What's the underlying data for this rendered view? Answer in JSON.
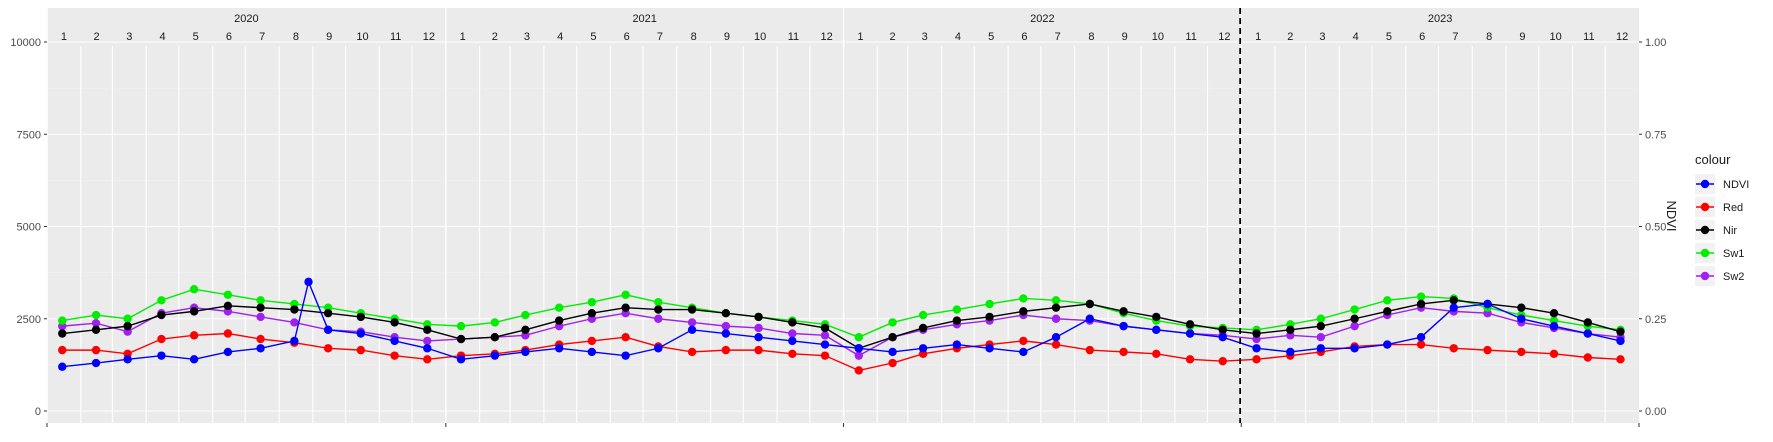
{
  "chart_data": {
    "type": "line",
    "x_axis": {
      "years": [
        "2020",
        "2021",
        "2022",
        "2023"
      ],
      "months": [
        "1",
        "2",
        "3",
        "4",
        "5",
        "6",
        "7",
        "8",
        "9",
        "10",
        "11",
        "12"
      ],
      "start": "2020-01-01",
      "end": "2024-01-01"
    },
    "y_left": {
      "range": [
        0,
        10000
      ],
      "ticks": [
        0,
        2500,
        5000,
        7500,
        10000
      ],
      "tick_labels": [
        "0",
        "2500",
        "5000",
        "7500",
        "10000"
      ]
    },
    "y_right": {
      "label": "NDVI",
      "range": [
        0.0,
        1.0
      ],
      "ticks": [
        0.0,
        0.25,
        0.5,
        0.75,
        1.0
      ],
      "tick_labels": [
        "0.00",
        "0.25",
        "0.50",
        "0.75",
        "1.00"
      ]
    },
    "vline_date": "2022-12-31",
    "grid": true,
    "legend": {
      "title": "colour",
      "position": "right"
    },
    "series": [
      {
        "name": "Sw2",
        "color": "#a020f0",
        "axis": "left",
        "points": [
          [
            "2020-01-15",
            2300
          ],
          [
            "2020-02-15",
            2380
          ],
          [
            "2020-03-15",
            2150
          ],
          [
            "2020-04-15",
            2650
          ],
          [
            "2020-05-15",
            2800
          ],
          [
            "2020-06-15",
            2700
          ],
          [
            "2020-07-15",
            2550
          ],
          [
            "2020-08-15",
            2400
          ],
          [
            "2020-09-15",
            2200
          ],
          [
            "2020-10-15",
            2150
          ],
          [
            "2020-11-15",
            2000
          ],
          [
            "2020-12-15",
            1900
          ],
          [
            "2021-01-15",
            1950
          ],
          [
            "2021-02-15",
            2000
          ],
          [
            "2021-03-15",
            2050
          ],
          [
            "2021-04-15",
            2300
          ],
          [
            "2021-05-15",
            2500
          ],
          [
            "2021-06-15",
            2650
          ],
          [
            "2021-07-15",
            2500
          ],
          [
            "2021-08-15",
            2400
          ],
          [
            "2021-09-15",
            2300
          ],
          [
            "2021-10-15",
            2250
          ],
          [
            "2021-11-15",
            2100
          ],
          [
            "2021-12-15",
            2050
          ],
          [
            "2022-01-15",
            1500
          ],
          [
            "2022-02-15",
            2000
          ],
          [
            "2022-03-15",
            2200
          ],
          [
            "2022-04-15",
            2350
          ],
          [
            "2022-05-15",
            2450
          ],
          [
            "2022-06-15",
            2600
          ],
          [
            "2022-07-15",
            2500
          ],
          [
            "2022-08-15",
            2450
          ],
          [
            "2022-09-15",
            2300
          ],
          [
            "2022-10-15",
            2200
          ],
          [
            "2022-11-15",
            2100
          ],
          [
            "2022-12-15",
            2050
          ],
          [
            "2023-01-15",
            1950
          ],
          [
            "2023-02-15",
            2050
          ],
          [
            "2023-03-15",
            2000
          ],
          [
            "2023-04-15",
            2300
          ],
          [
            "2023-05-15",
            2600
          ],
          [
            "2023-06-15",
            2800
          ],
          [
            "2023-07-15",
            2700
          ],
          [
            "2023-08-15",
            2650
          ],
          [
            "2023-09-15",
            2400
          ],
          [
            "2023-10-15",
            2250
          ],
          [
            "2023-11-15",
            2100
          ],
          [
            "2023-12-15",
            2000
          ]
        ]
      },
      {
        "name": "Sw1",
        "color": "#00ee00",
        "axis": "left",
        "points": [
          [
            "2020-01-15",
            2450
          ],
          [
            "2020-02-15",
            2600
          ],
          [
            "2020-03-15",
            2500
          ],
          [
            "2020-04-15",
            3000
          ],
          [
            "2020-05-15",
            3300
          ],
          [
            "2020-06-15",
            3150
          ],
          [
            "2020-07-15",
            3000
          ],
          [
            "2020-08-15",
            2900
          ],
          [
            "2020-09-15",
            2800
          ],
          [
            "2020-10-15",
            2650
          ],
          [
            "2020-11-15",
            2500
          ],
          [
            "2020-12-15",
            2350
          ],
          [
            "2021-01-15",
            2300
          ],
          [
            "2021-02-15",
            2400
          ],
          [
            "2021-03-15",
            2600
          ],
          [
            "2021-04-15",
            2800
          ],
          [
            "2021-05-15",
            2950
          ],
          [
            "2021-06-15",
            3150
          ],
          [
            "2021-07-15",
            2950
          ],
          [
            "2021-08-15",
            2800
          ],
          [
            "2021-09-15",
            2650
          ],
          [
            "2021-10-15",
            2550
          ],
          [
            "2021-11-15",
            2450
          ],
          [
            "2021-12-15",
            2350
          ],
          [
            "2022-01-15",
            2000
          ],
          [
            "2022-02-15",
            2400
          ],
          [
            "2022-03-15",
            2600
          ],
          [
            "2022-04-15",
            2750
          ],
          [
            "2022-05-15",
            2900
          ],
          [
            "2022-06-15",
            3050
          ],
          [
            "2022-07-15",
            3000
          ],
          [
            "2022-08-15",
            2900
          ],
          [
            "2022-09-15",
            2650
          ],
          [
            "2022-10-15",
            2450
          ],
          [
            "2022-11-15",
            2300
          ],
          [
            "2022-12-15",
            2250
          ],
          [
            "2023-01-15",
            2200
          ],
          [
            "2023-02-15",
            2350
          ],
          [
            "2023-03-15",
            2500
          ],
          [
            "2023-04-15",
            2750
          ],
          [
            "2023-05-15",
            3000
          ],
          [
            "2023-06-15",
            3100
          ],
          [
            "2023-07-15",
            3050
          ],
          [
            "2023-08-15",
            2800
          ],
          [
            "2023-09-15",
            2600
          ],
          [
            "2023-10-15",
            2450
          ],
          [
            "2023-11-15",
            2300
          ],
          [
            "2023-12-15",
            2200
          ]
        ]
      },
      {
        "name": "Nir",
        "color": "#000000",
        "axis": "left",
        "points": [
          [
            "2020-01-15",
            2100
          ],
          [
            "2020-02-15",
            2200
          ],
          [
            "2020-03-15",
            2300
          ],
          [
            "2020-04-15",
            2600
          ],
          [
            "2020-05-15",
            2700
          ],
          [
            "2020-06-15",
            2850
          ],
          [
            "2020-07-15",
            2800
          ],
          [
            "2020-08-15",
            2750
          ],
          [
            "2020-09-15",
            2650
          ],
          [
            "2020-10-15",
            2550
          ],
          [
            "2020-11-15",
            2400
          ],
          [
            "2020-12-15",
            2200
          ],
          [
            "2021-01-15",
            1950
          ],
          [
            "2021-02-15",
            2000
          ],
          [
            "2021-03-15",
            2200
          ],
          [
            "2021-04-15",
            2450
          ],
          [
            "2021-05-15",
            2650
          ],
          [
            "2021-06-15",
            2800
          ],
          [
            "2021-07-15",
            2750
          ],
          [
            "2021-08-15",
            2750
          ],
          [
            "2021-09-15",
            2650
          ],
          [
            "2021-10-15",
            2550
          ],
          [
            "2021-11-15",
            2400
          ],
          [
            "2021-12-15",
            2250
          ],
          [
            "2022-01-15",
            1700
          ],
          [
            "2022-02-15",
            2000
          ],
          [
            "2022-03-15",
            2250
          ],
          [
            "2022-04-15",
            2450
          ],
          [
            "2022-05-15",
            2550
          ],
          [
            "2022-06-15",
            2700
          ],
          [
            "2022-07-15",
            2800
          ],
          [
            "2022-08-15",
            2900
          ],
          [
            "2022-09-15",
            2700
          ],
          [
            "2022-10-15",
            2550
          ],
          [
            "2022-11-15",
            2350
          ],
          [
            "2022-12-15",
            2200
          ],
          [
            "2023-01-15",
            2100
          ],
          [
            "2023-02-15",
            2200
          ],
          [
            "2023-03-15",
            2300
          ],
          [
            "2023-04-15",
            2500
          ],
          [
            "2023-05-15",
            2700
          ],
          [
            "2023-06-15",
            2900
          ],
          [
            "2023-07-15",
            3000
          ],
          [
            "2023-08-15",
            2900
          ],
          [
            "2023-09-15",
            2800
          ],
          [
            "2023-10-15",
            2650
          ],
          [
            "2023-11-15",
            2400
          ],
          [
            "2023-12-15",
            2150
          ]
        ]
      },
      {
        "name": "Red",
        "color": "#ff0000",
        "axis": "left",
        "points": [
          [
            "2020-01-15",
            1650
          ],
          [
            "2020-02-15",
            1650
          ],
          [
            "2020-03-15",
            1550
          ],
          [
            "2020-04-15",
            1950
          ],
          [
            "2020-05-15",
            2050
          ],
          [
            "2020-06-15",
            2100
          ],
          [
            "2020-07-15",
            1950
          ],
          [
            "2020-08-15",
            1850
          ],
          [
            "2020-09-15",
            1700
          ],
          [
            "2020-10-15",
            1650
          ],
          [
            "2020-11-15",
            1500
          ],
          [
            "2020-12-15",
            1400
          ],
          [
            "2021-01-15",
            1500
          ],
          [
            "2021-02-15",
            1550
          ],
          [
            "2021-03-15",
            1650
          ],
          [
            "2021-04-15",
            1800
          ],
          [
            "2021-05-15",
            1900
          ],
          [
            "2021-06-15",
            2000
          ],
          [
            "2021-07-15",
            1750
          ],
          [
            "2021-08-15",
            1600
          ],
          [
            "2021-09-15",
            1650
          ],
          [
            "2021-10-15",
            1650
          ],
          [
            "2021-11-15",
            1550
          ],
          [
            "2021-12-15",
            1500
          ],
          [
            "2022-01-15",
            1100
          ],
          [
            "2022-02-15",
            1300
          ],
          [
            "2022-03-15",
            1550
          ],
          [
            "2022-04-15",
            1700
          ],
          [
            "2022-05-15",
            1800
          ],
          [
            "2022-06-15",
            1900
          ],
          [
            "2022-07-15",
            1800
          ],
          [
            "2022-08-15",
            1650
          ],
          [
            "2022-09-15",
            1600
          ],
          [
            "2022-10-15",
            1550
          ],
          [
            "2022-11-15",
            1400
          ],
          [
            "2022-12-15",
            1350
          ],
          [
            "2023-01-15",
            1400
          ],
          [
            "2023-02-15",
            1500
          ],
          [
            "2023-03-15",
            1600
          ],
          [
            "2023-04-15",
            1750
          ],
          [
            "2023-05-15",
            1800
          ],
          [
            "2023-06-15",
            1800
          ],
          [
            "2023-07-15",
            1700
          ],
          [
            "2023-08-15",
            1650
          ],
          [
            "2023-09-15",
            1600
          ],
          [
            "2023-10-15",
            1550
          ],
          [
            "2023-11-15",
            1450
          ],
          [
            "2023-12-15",
            1400
          ]
        ]
      },
      {
        "name": "NDVI",
        "color": "#0000ff",
        "axis": "right",
        "points": [
          [
            "2020-01-15",
            0.12
          ],
          [
            "2020-02-15",
            0.13
          ],
          [
            "2020-03-15",
            0.14
          ],
          [
            "2020-04-15",
            0.15
          ],
          [
            "2020-05-15",
            0.14
          ],
          [
            "2020-06-15",
            0.16
          ],
          [
            "2020-07-15",
            0.17
          ],
          [
            "2020-08-15",
            0.19
          ],
          [
            "2020-08-28",
            0.35
          ],
          [
            "2020-09-15",
            0.22
          ],
          [
            "2020-10-15",
            0.21
          ],
          [
            "2020-11-15",
            0.19
          ],
          [
            "2020-12-15",
            0.17
          ],
          [
            "2021-01-15",
            0.14
          ],
          [
            "2021-02-15",
            0.15
          ],
          [
            "2021-03-15",
            0.16
          ],
          [
            "2021-04-15",
            0.17
          ],
          [
            "2021-05-15",
            0.16
          ],
          [
            "2021-06-15",
            0.15
          ],
          [
            "2021-07-15",
            0.17
          ],
          [
            "2021-08-15",
            0.22
          ],
          [
            "2021-09-15",
            0.21
          ],
          [
            "2021-10-15",
            0.2
          ],
          [
            "2021-11-15",
            0.19
          ],
          [
            "2021-12-15",
            0.18
          ],
          [
            "2022-01-15",
            0.17
          ],
          [
            "2022-02-15",
            0.16
          ],
          [
            "2022-03-15",
            0.17
          ],
          [
            "2022-04-15",
            0.18
          ],
          [
            "2022-05-15",
            0.17
          ],
          [
            "2022-06-15",
            0.16
          ],
          [
            "2022-07-15",
            0.2
          ],
          [
            "2022-08-15",
            0.25
          ],
          [
            "2022-09-15",
            0.23
          ],
          [
            "2022-10-15",
            0.22
          ],
          [
            "2022-11-15",
            0.21
          ],
          [
            "2022-12-15",
            0.2
          ],
          [
            "2023-01-15",
            0.17
          ],
          [
            "2023-02-15",
            0.16
          ],
          [
            "2023-03-15",
            0.17
          ],
          [
            "2023-04-15",
            0.17
          ],
          [
            "2023-05-15",
            0.18
          ],
          [
            "2023-06-15",
            0.2
          ],
          [
            "2023-07-15",
            0.28
          ],
          [
            "2023-08-15",
            0.29
          ],
          [
            "2023-09-15",
            0.25
          ],
          [
            "2023-10-15",
            0.23
          ],
          [
            "2023-11-15",
            0.21
          ],
          [
            "2023-12-15",
            0.19
          ]
        ]
      }
    ],
    "legend_order": [
      "NDVI",
      "Red",
      "Nir",
      "Sw1",
      "Sw2"
    ]
  }
}
